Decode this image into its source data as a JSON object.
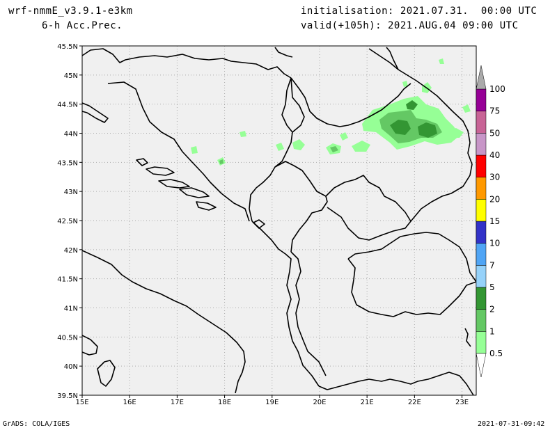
{
  "header": {
    "model": "wrf-nmmE_v3.9.1-e3km",
    "field": "6-h Acc.Prec.",
    "init": "initialisation: 2021.07.31.  00:00 UTC",
    "valid": "valid(+105h): 2021.AUG.04 09:00 UTC"
  },
  "footer": {
    "left": "GrADS: COLA/IGES",
    "right": "2021-07-31-09:42"
  },
  "map": {
    "lat_labels": [
      "45.5N",
      "45N",
      "44.5N",
      "44N",
      "43.5N",
      "43N",
      "42.5N",
      "42N",
      "41.5N",
      "41N",
      "40.5N",
      "40N",
      "39.5N"
    ],
    "lon_labels": [
      "15E",
      "16E",
      "17E",
      "18E",
      "19E",
      "20E",
      "21E",
      "22E",
      "23E"
    ],
    "lat_range": [
      39.5,
      45.5
    ],
    "lon_range": [
      15,
      23.3
    ],
    "background_color": "#f0f0f0",
    "grid": true
  },
  "colorbar": {
    "labels": [
      "0.5",
      "1",
      "2",
      "5",
      "7",
      "10",
      "15",
      "20",
      "30",
      "40",
      "50",
      "75",
      "100"
    ],
    "colors": [
      "#96ff96",
      "#64c864",
      "#339633",
      "#96d2fa",
      "#50a5f5",
      "#3232c8",
      "#ffff00",
      "#ff9900",
      "#ff0000",
      "#c896c8",
      "#c86496",
      "#960096",
      "#aaaaaa"
    ]
  }
}
